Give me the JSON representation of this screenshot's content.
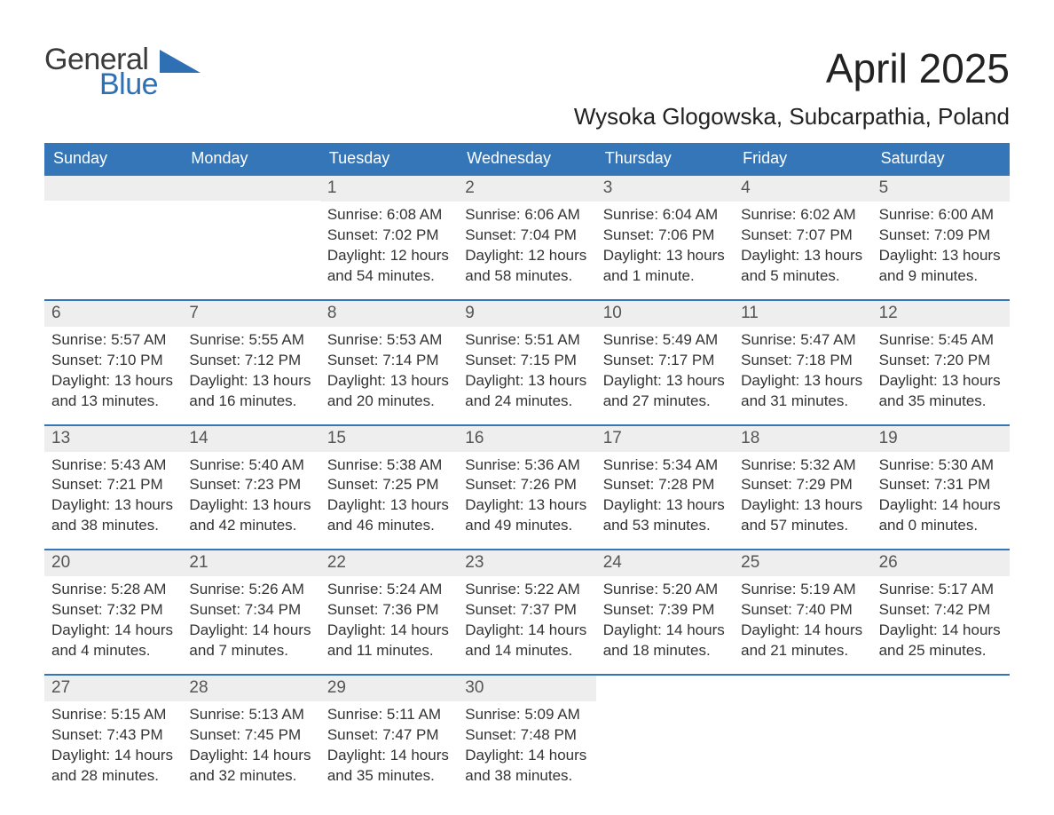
{
  "brand": {
    "part1": "General",
    "part2": "Blue",
    "accent_color": "#2f6fb3",
    "dark_color": "#3a3a3a"
  },
  "title": "April 2025",
  "location": "Wysoka Glogowska, Subcarpathia, Poland",
  "header_bg": "#3476b8",
  "header_fg": "#ffffff",
  "daynum_bg": "#eeeeee",
  "row_border": "#3476b8",
  "text_color": "#333333",
  "days": [
    "Sunday",
    "Monday",
    "Tuesday",
    "Wednesday",
    "Thursday",
    "Friday",
    "Saturday"
  ],
  "weeks": [
    [
      {
        "n": "",
        "l1": "",
        "l2": "",
        "l3": "",
        "l4": ""
      },
      {
        "n": "",
        "l1": "",
        "l2": "",
        "l3": "",
        "l4": ""
      },
      {
        "n": "1",
        "l1": "Sunrise: 6:08 AM",
        "l2": "Sunset: 7:02 PM",
        "l3": "Daylight: 12 hours",
        "l4": "and 54 minutes."
      },
      {
        "n": "2",
        "l1": "Sunrise: 6:06 AM",
        "l2": "Sunset: 7:04 PM",
        "l3": "Daylight: 12 hours",
        "l4": "and 58 minutes."
      },
      {
        "n": "3",
        "l1": "Sunrise: 6:04 AM",
        "l2": "Sunset: 7:06 PM",
        "l3": "Daylight: 13 hours",
        "l4": "and 1 minute."
      },
      {
        "n": "4",
        "l1": "Sunrise: 6:02 AM",
        "l2": "Sunset: 7:07 PM",
        "l3": "Daylight: 13 hours",
        "l4": "and 5 minutes."
      },
      {
        "n": "5",
        "l1": "Sunrise: 6:00 AM",
        "l2": "Sunset: 7:09 PM",
        "l3": "Daylight: 13 hours",
        "l4": "and 9 minutes."
      }
    ],
    [
      {
        "n": "6",
        "l1": "Sunrise: 5:57 AM",
        "l2": "Sunset: 7:10 PM",
        "l3": "Daylight: 13 hours",
        "l4": "and 13 minutes."
      },
      {
        "n": "7",
        "l1": "Sunrise: 5:55 AM",
        "l2": "Sunset: 7:12 PM",
        "l3": "Daylight: 13 hours",
        "l4": "and 16 minutes."
      },
      {
        "n": "8",
        "l1": "Sunrise: 5:53 AM",
        "l2": "Sunset: 7:14 PM",
        "l3": "Daylight: 13 hours",
        "l4": "and 20 minutes."
      },
      {
        "n": "9",
        "l1": "Sunrise: 5:51 AM",
        "l2": "Sunset: 7:15 PM",
        "l3": "Daylight: 13 hours",
        "l4": "and 24 minutes."
      },
      {
        "n": "10",
        "l1": "Sunrise: 5:49 AM",
        "l2": "Sunset: 7:17 PM",
        "l3": "Daylight: 13 hours",
        "l4": "and 27 minutes."
      },
      {
        "n": "11",
        "l1": "Sunrise: 5:47 AM",
        "l2": "Sunset: 7:18 PM",
        "l3": "Daylight: 13 hours",
        "l4": "and 31 minutes."
      },
      {
        "n": "12",
        "l1": "Sunrise: 5:45 AM",
        "l2": "Sunset: 7:20 PM",
        "l3": "Daylight: 13 hours",
        "l4": "and 35 minutes."
      }
    ],
    [
      {
        "n": "13",
        "l1": "Sunrise: 5:43 AM",
        "l2": "Sunset: 7:21 PM",
        "l3": "Daylight: 13 hours",
        "l4": "and 38 minutes."
      },
      {
        "n": "14",
        "l1": "Sunrise: 5:40 AM",
        "l2": "Sunset: 7:23 PM",
        "l3": "Daylight: 13 hours",
        "l4": "and 42 minutes."
      },
      {
        "n": "15",
        "l1": "Sunrise: 5:38 AM",
        "l2": "Sunset: 7:25 PM",
        "l3": "Daylight: 13 hours",
        "l4": "and 46 minutes."
      },
      {
        "n": "16",
        "l1": "Sunrise: 5:36 AM",
        "l2": "Sunset: 7:26 PM",
        "l3": "Daylight: 13 hours",
        "l4": "and 49 minutes."
      },
      {
        "n": "17",
        "l1": "Sunrise: 5:34 AM",
        "l2": "Sunset: 7:28 PM",
        "l3": "Daylight: 13 hours",
        "l4": "and 53 minutes."
      },
      {
        "n": "18",
        "l1": "Sunrise: 5:32 AM",
        "l2": "Sunset: 7:29 PM",
        "l3": "Daylight: 13 hours",
        "l4": "and 57 minutes."
      },
      {
        "n": "19",
        "l1": "Sunrise: 5:30 AM",
        "l2": "Sunset: 7:31 PM",
        "l3": "Daylight: 14 hours",
        "l4": "and 0 minutes."
      }
    ],
    [
      {
        "n": "20",
        "l1": "Sunrise: 5:28 AM",
        "l2": "Sunset: 7:32 PM",
        "l3": "Daylight: 14 hours",
        "l4": "and 4 minutes."
      },
      {
        "n": "21",
        "l1": "Sunrise: 5:26 AM",
        "l2": "Sunset: 7:34 PM",
        "l3": "Daylight: 14 hours",
        "l4": "and 7 minutes."
      },
      {
        "n": "22",
        "l1": "Sunrise: 5:24 AM",
        "l2": "Sunset: 7:36 PM",
        "l3": "Daylight: 14 hours",
        "l4": "and 11 minutes."
      },
      {
        "n": "23",
        "l1": "Sunrise: 5:22 AM",
        "l2": "Sunset: 7:37 PM",
        "l3": "Daylight: 14 hours",
        "l4": "and 14 minutes."
      },
      {
        "n": "24",
        "l1": "Sunrise: 5:20 AM",
        "l2": "Sunset: 7:39 PM",
        "l3": "Daylight: 14 hours",
        "l4": "and 18 minutes."
      },
      {
        "n": "25",
        "l1": "Sunrise: 5:19 AM",
        "l2": "Sunset: 7:40 PM",
        "l3": "Daylight: 14 hours",
        "l4": "and 21 minutes."
      },
      {
        "n": "26",
        "l1": "Sunrise: 5:17 AM",
        "l2": "Sunset: 7:42 PM",
        "l3": "Daylight: 14 hours",
        "l4": "and 25 minutes."
      }
    ],
    [
      {
        "n": "27",
        "l1": "Sunrise: 5:15 AM",
        "l2": "Sunset: 7:43 PM",
        "l3": "Daylight: 14 hours",
        "l4": "and 28 minutes."
      },
      {
        "n": "28",
        "l1": "Sunrise: 5:13 AM",
        "l2": "Sunset: 7:45 PM",
        "l3": "Daylight: 14 hours",
        "l4": "and 32 minutes."
      },
      {
        "n": "29",
        "l1": "Sunrise: 5:11 AM",
        "l2": "Sunset: 7:47 PM",
        "l3": "Daylight: 14 hours",
        "l4": "and 35 minutes."
      },
      {
        "n": "30",
        "l1": "Sunrise: 5:09 AM",
        "l2": "Sunset: 7:48 PM",
        "l3": "Daylight: 14 hours",
        "l4": "and 38 minutes."
      },
      {
        "n": "",
        "l1": "",
        "l2": "",
        "l3": "",
        "l4": ""
      },
      {
        "n": "",
        "l1": "",
        "l2": "",
        "l3": "",
        "l4": ""
      },
      {
        "n": "",
        "l1": "",
        "l2": "",
        "l3": "",
        "l4": ""
      }
    ]
  ]
}
